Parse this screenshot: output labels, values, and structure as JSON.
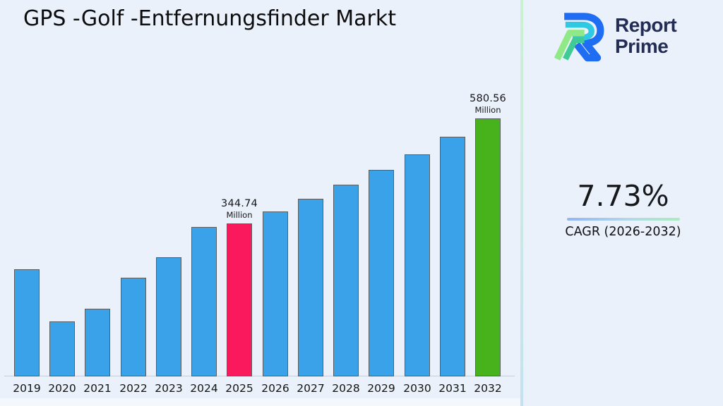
{
  "title": "GPS -Golf -Entfernungsfinder Markt",
  "logo": {
    "line1": "Report",
    "line2": "Prime"
  },
  "cagr": {
    "value": "7.73%",
    "label": "CAGR (2026-2032)"
  },
  "colors": {
    "background": "#ebf1fa",
    "bar_default": "#3aa2e9",
    "bar_highlight_2025": "#fb195d",
    "bar_highlight_2032": "#48b21c",
    "bar_border": "#595e63",
    "logo_navy": "#222c55",
    "logo_blue": "#1f6df2",
    "logo_cyan": "#30c9e4",
    "logo_green_light": "#90e987",
    "logo_green_teal": "#3fca96"
  },
  "chart_data": {
    "type": "bar",
    "title": "GPS -Golf -Entfernungsfinder Markt",
    "xlabel": "",
    "ylabel": "",
    "unit": "Million",
    "grid": false,
    "legend": false,
    "ylim": [
      0,
      620
    ],
    "categories": [
      "2019",
      "2020",
      "2021",
      "2022",
      "2023",
      "2024",
      "2025",
      "2026",
      "2027",
      "2028",
      "2029",
      "2030",
      "2031",
      "2032"
    ],
    "values": [
      242,
      124,
      152,
      223,
      269,
      336,
      344.74,
      371.39,
      400.1,
      431.03,
      464.35,
      500.24,
      538.91,
      580.56
    ],
    "highlights": [
      {
        "category": "2025",
        "color": "#fb195d",
        "label": "344.74",
        "sublabel": "Million"
      },
      {
        "category": "2032",
        "color": "#48b21c",
        "label": "580.56",
        "sublabel": "Million"
      }
    ]
  }
}
